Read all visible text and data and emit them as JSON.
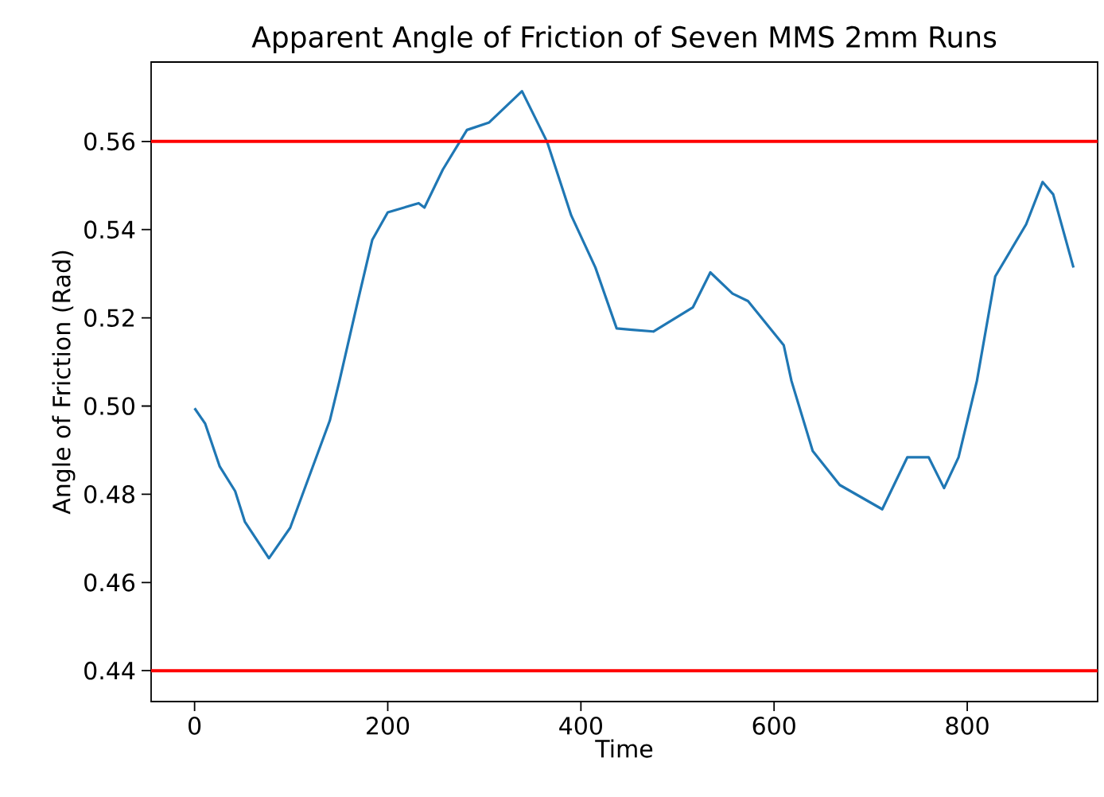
{
  "chart_data": {
    "type": "line",
    "title": "Apparent Angle of Friction of Seven MMS 2mm Runs",
    "xlabel": "Time",
    "ylabel": "Angle of Friction (Rad)",
    "x": [
      0,
      11,
      26,
      42,
      52,
      77,
      99,
      140,
      150,
      169,
      184,
      200,
      232,
      238,
      257,
      282,
      305,
      339,
      365,
      390,
      415,
      437,
      453,
      475,
      516,
      534,
      557,
      573,
      610,
      618,
      640,
      668,
      712,
      738,
      760,
      776,
      791,
      810,
      829,
      861,
      878,
      889,
      910
    ],
    "series": [
      {
        "color": "#1f77b4",
        "values": [
          0.4995,
          0.496,
          0.4863,
          0.4807,
          0.4738,
          0.4655,
          0.4724,
          0.4967,
          0.5057,
          0.5238,
          0.5377,
          0.5439,
          0.546,
          0.545,
          0.5536,
          0.5626,
          0.5643,
          0.5714,
          0.5599,
          0.5432,
          0.5314,
          0.5176,
          0.5173,
          0.5169,
          0.5224,
          0.5303,
          0.5255,
          0.5238,
          0.5138,
          0.5057,
          0.4898,
          0.4821,
          0.4766,
          0.4884,
          0.4884,
          0.4814,
          0.4884,
          0.5057,
          0.5294,
          0.5412,
          0.5508,
          0.548,
          0.5314
        ]
      }
    ],
    "xlim": [
      -45,
      935
    ],
    "ylim": [
      0.433,
      0.578
    ],
    "xticks": [
      0,
      200,
      400,
      600,
      800
    ],
    "yticks": [
      0.44,
      0.46,
      0.48,
      {
        "value": 0.5,
        "label": "0.50"
      },
      0.52,
      0.54,
      0.56
    ],
    "ref_lines": [
      {
        "axis": "y",
        "value": 0.44,
        "color": "#ff0000"
      },
      {
        "axis": "y",
        "value": 0.56,
        "color": "#ff0000"
      }
    ],
    "grid": false
  }
}
